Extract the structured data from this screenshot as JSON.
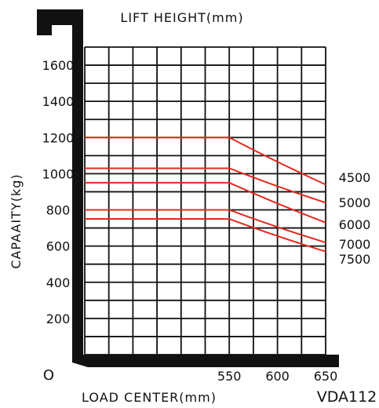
{
  "chart_data": {
    "type": "line",
    "title": "LIFT HEIGHT(mm)",
    "xlabel": "LOAD CENTER(mm)",
    "ylabel": "CAPAAITY(kg)",
    "model": "VDA112",
    "origin_label": "O",
    "xlim": [
      400,
      650
    ],
    "ylim": [
      0,
      1700
    ],
    "x_ticks": [
      "550",
      "600",
      "650"
    ],
    "y_ticks": [
      "200",
      "400",
      "600",
      "800",
      "1000",
      "1200",
      "1400",
      "1600"
    ],
    "grid": true,
    "series": [
      {
        "name": "4500",
        "x": [
          400,
          550,
          650
        ],
        "y": [
          1200,
          1200,
          940
        ]
      },
      {
        "name": "5000",
        "x": [
          400,
          550,
          650
        ],
        "y": [
          1030,
          1030,
          840
        ]
      },
      {
        "name": "6000",
        "x": [
          400,
          550,
          650
        ],
        "y": [
          950,
          950,
          730
        ]
      },
      {
        "name": "7000",
        "x": [
          400,
          550,
          650
        ],
        "y": [
          800,
          800,
          620
        ]
      },
      {
        "name": "7500",
        "x": [
          400,
          550,
          650
        ],
        "y": [
          750,
          750,
          570
        ]
      }
    ],
    "colors": {
      "curve": "#e32a1f",
      "grid": "#111111",
      "frame": "#111111",
      "text": "#111111"
    }
  }
}
